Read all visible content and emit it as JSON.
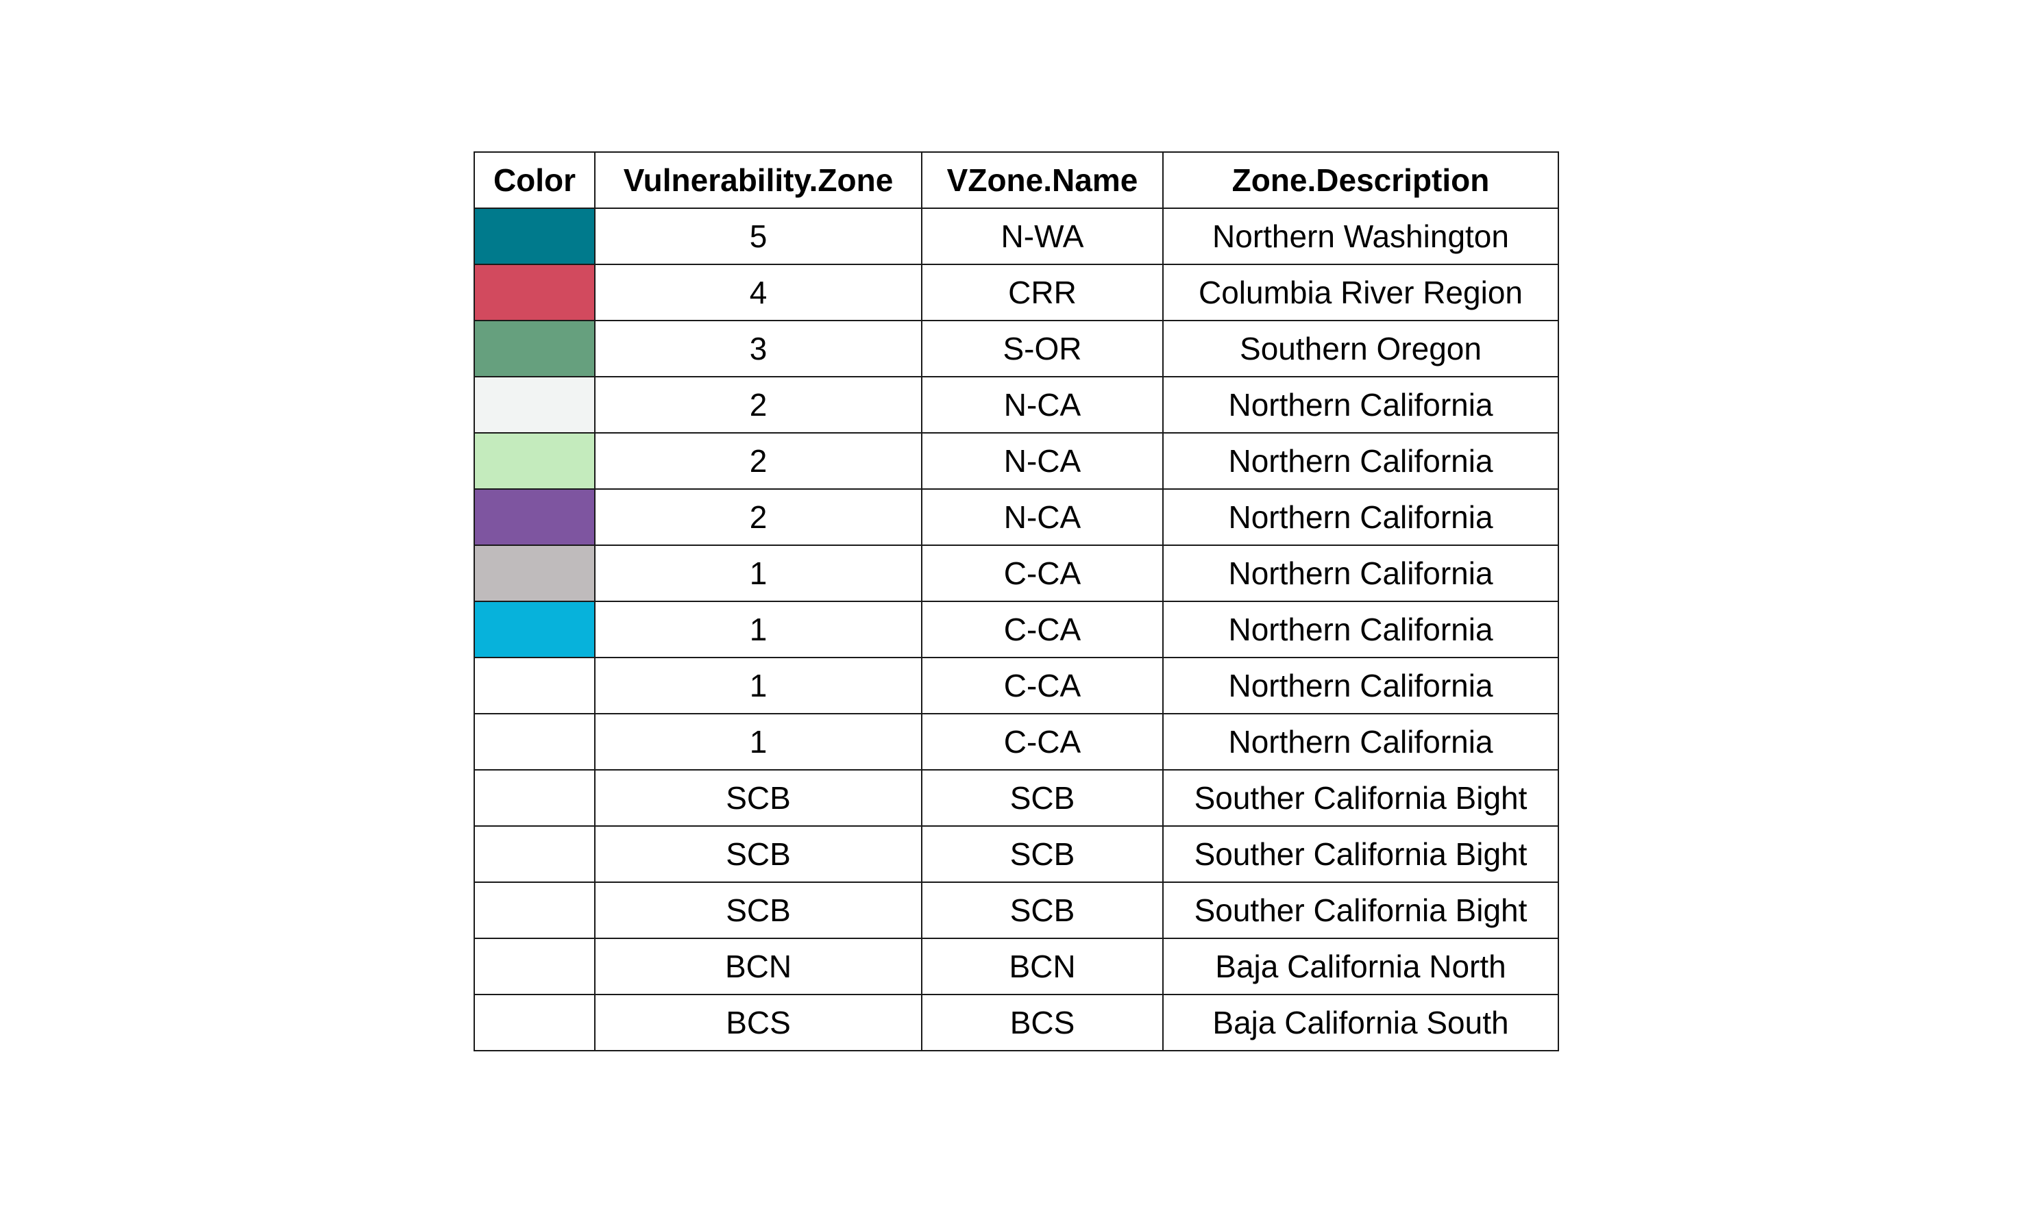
{
  "table": {
    "headers": [
      "Color",
      "Vulnerability.Zone",
      "VZone.Name",
      "Zone.Description"
    ],
    "rows": [
      {
        "color": "#007A8C",
        "zone": "5",
        "name": "N-WA",
        "description": "Northern Washington"
      },
      {
        "color": "#D24A5E",
        "zone": "4",
        "name": "CRR",
        "description": "Columbia River Region"
      },
      {
        "color": "#66A07E",
        "zone": "3",
        "name": "S-OR",
        "description": "Southern Oregon"
      },
      {
        "color": "#F2F4F3",
        "zone": "2",
        "name": "N-CA",
        "description": "Northern California"
      },
      {
        "color": "#C4EBBD",
        "zone": "2",
        "name": "N-CA",
        "description": "Northern California"
      },
      {
        "color": "#7E55A0",
        "zone": "2",
        "name": "N-CA",
        "description": "Northern California"
      },
      {
        "color": "#BFBBBC",
        "zone": "1",
        "name": "C-CA",
        "description": "Northern California"
      },
      {
        "color": "#07B2DB",
        "zone": "1",
        "name": "C-CA",
        "description": "Northern California"
      },
      {
        "color": "",
        "zone": "1",
        "name": "C-CA",
        "description": "Northern California"
      },
      {
        "color": "",
        "zone": "1",
        "name": "C-CA",
        "description": "Northern California"
      },
      {
        "color": "",
        "zone": "SCB",
        "name": "SCB",
        "description": "Souther California Bight"
      },
      {
        "color": "",
        "zone": "SCB",
        "name": "SCB",
        "description": "Souther California Bight"
      },
      {
        "color": "",
        "zone": "SCB",
        "name": "SCB",
        "description": "Souther California Bight"
      },
      {
        "color": "",
        "zone": "BCN",
        "name": "BCN",
        "description": "Baja California North"
      },
      {
        "color": "",
        "zone": "BCS",
        "name": "BCS",
        "description": "Baja California South"
      }
    ]
  }
}
